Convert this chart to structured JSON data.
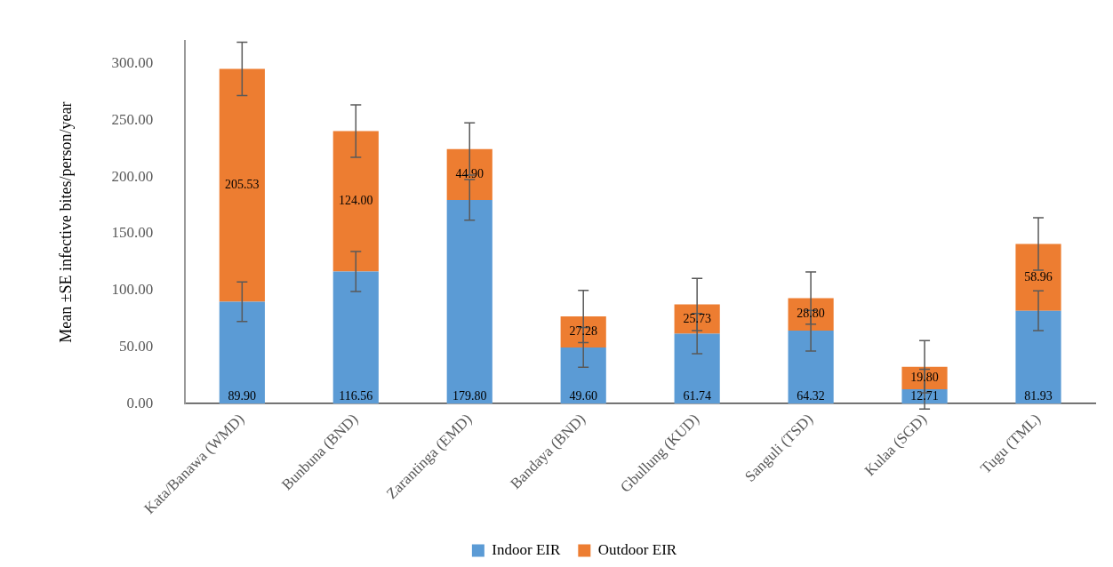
{
  "chart_data": {
    "type": "bar",
    "stacked": true,
    "ylabel": "Mean ±SE infective bites/person/year",
    "categories": [
      "Kata/Banawa (WMD)",
      "Bunbuna (BND)",
      "Zarantinga (EMD)",
      "Bandaya (BND)",
      "Gbullung (KUD)",
      "Sanguli (TSD)",
      "Kulaa (SGD)",
      "Tugu (TML)"
    ],
    "series": [
      {
        "name": "Indoor EIR",
        "color": "#5b9bd5",
        "values": [
          89.9,
          116.56,
          179.8,
          49.6,
          61.74,
          64.32,
          12.71,
          81.93
        ],
        "errors": [
          17.5,
          17.6,
          18,
          17.5,
          17.7,
          17.9,
          17.6,
          17.5
        ],
        "value_labels": [
          "89.90",
          "116.56",
          "179.80",
          "49.60",
          "61.74",
          "64.32",
          "12.71",
          "81.93"
        ]
      },
      {
        "name": "Outdoor EIR",
        "color": "#ed7d31",
        "values": [
          205.53,
          124.0,
          44.9,
          27.28,
          25.73,
          28.8,
          19.8,
          58.96
        ],
        "errors": [
          23.5,
          23.2,
          23,
          23,
          23.1,
          23,
          23,
          23.2
        ],
        "value_labels": [
          "205.53",
          "124.00",
          "44.90",
          "27.28",
          "25.73",
          "28.80",
          "19.80",
          "58.96"
        ]
      }
    ],
    "ylim": [
      0,
      320
    ],
    "yticks": [
      {
        "value": 0,
        "label": "0.00"
      },
      {
        "value": 50,
        "label": "50.00"
      },
      {
        "value": 100,
        "label": "100.00"
      },
      {
        "value": 150,
        "label": "150.00"
      },
      {
        "value": 200,
        "label": "200.00"
      },
      {
        "value": 250,
        "label": "250.00"
      },
      {
        "value": 300,
        "label": "300.00"
      }
    ],
    "grid": false,
    "legend": "bottom"
  }
}
